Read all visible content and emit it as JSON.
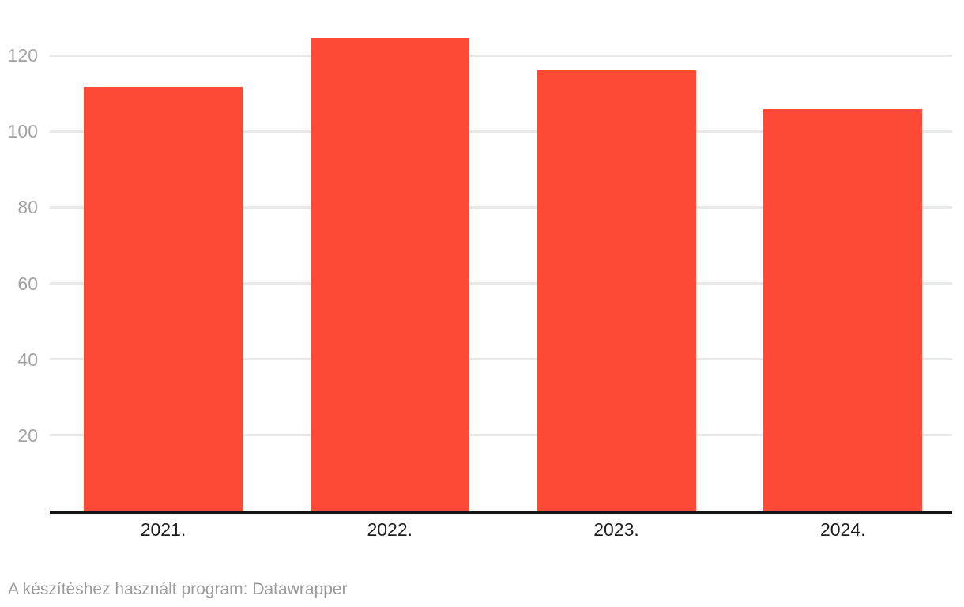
{
  "chart_data": {
    "type": "bar",
    "categories": [
      "2021.",
      "2022.",
      "2023.",
      "2024."
    ],
    "values": [
      111.7,
      124.6,
      116.1,
      105.8
    ],
    "title": "",
    "xlabel": "",
    "ylabel": "",
    "ylim": [
      0,
      130
    ],
    "yticks": [
      20,
      40,
      60,
      80,
      100,
      120
    ],
    "grid": true,
    "legend": "none",
    "bar_color": "#fc4a37",
    "gridline_color": "#e8e8e8",
    "axis_color": "#141414",
    "ytick_color": "#a3a3a3",
    "xtick_color": "#1d1d1d"
  },
  "footer": {
    "text": "A készítéshez használt program: Datawrapper",
    "color": "#9c9c9c"
  }
}
